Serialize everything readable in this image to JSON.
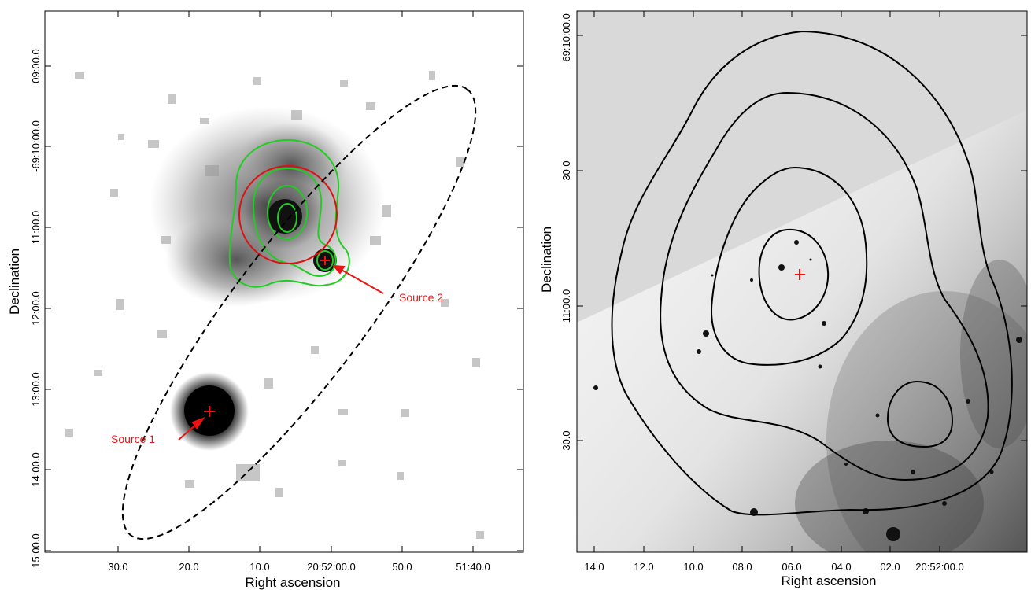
{
  "left_panel": {
    "xlabel": "Right ascension",
    "ylabel": "Declination",
    "xticks": [
      "30.0",
      "20.0",
      "10.0",
      "20:52:00.0",
      "50.0",
      "51:40.0"
    ],
    "yticks": [
      "09:00.0",
      "-69:10:00.0",
      "11:00.0",
      "12:00.0",
      "13:00.0",
      "14:00.0",
      "15:00.0"
    ],
    "sources": [
      {
        "label": "Source 1"
      },
      {
        "label": "Source 2"
      }
    ],
    "colors": {
      "contour": "#22cc22",
      "circle": "#dd1111",
      "marker": "#ee1111",
      "ellipse": "#000000"
    }
  },
  "right_panel": {
    "xlabel": "Right ascension",
    "ylabel": "Declination",
    "xticks": [
      "14.0",
      "12.0",
      "10.0",
      "08.0",
      "06.0",
      "04.0",
      "02.0",
      "20:52:00.0"
    ],
    "yticks": [
      "-69:10:00.0",
      "30.0",
      "11:00.0",
      "30.0"
    ],
    "colors": {
      "contour": "#000000",
      "marker": "#ee1111",
      "masked_region": "#d9d9d9"
    }
  }
}
